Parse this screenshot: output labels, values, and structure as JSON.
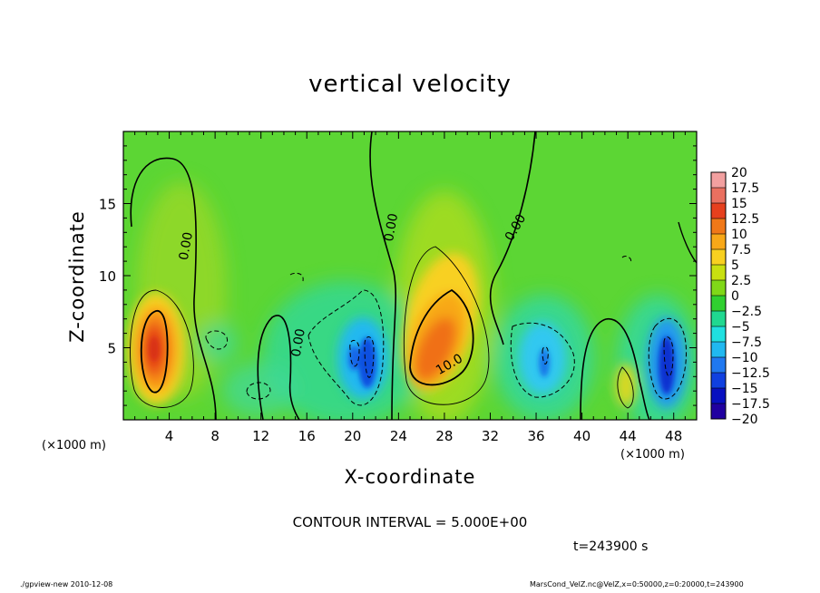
{
  "chart_data": {
    "type": "heatmap",
    "title": "vertical velocity",
    "xlabel": "X-coordinate",
    "ylabel": "Z-coordinate",
    "x_unit_left": "(×1000 m)",
    "x_unit_right": "(×1000 m)",
    "xlim": [
      0,
      50
    ],
    "ylim": [
      0,
      20
    ],
    "x_ticks": [
      4,
      8,
      12,
      16,
      20,
      24,
      28,
      32,
      36,
      40,
      44,
      48
    ],
    "y_ticks": [
      5,
      10,
      15
    ],
    "colorbar": {
      "labels": [
        "20",
        "17.5",
        "15",
        "12.5",
        "10",
        "7.5",
        "5",
        "2.5",
        "0",
        "−2.5",
        "−5",
        "−7.5",
        "−10",
        "−12.5",
        "−15",
        "−17.5",
        "−20"
      ],
      "colors": [
        "#f2a0a0",
        "#ea7060",
        "#e6401e",
        "#f07818",
        "#f8a818",
        "#f8d020",
        "#c8e010",
        "#80d818",
        "#30d030",
        "#20d890",
        "#20e0e0",
        "#20b8f0",
        "#2078f0",
        "#1040e0",
        "#0810c0",
        "#2000a0",
        "#6020a0"
      ]
    },
    "contour_labels": [
      {
        "text": "0.00",
        "x": 5.8,
        "z": 12.0,
        "angle": -80
      },
      {
        "text": "0.00",
        "x": 15.6,
        "z": 5.3,
        "angle": -80
      },
      {
        "text": "0.00",
        "x": 23.7,
        "z": 13.3,
        "angle": -80
      },
      {
        "text": "0.00",
        "x": 34.5,
        "z": 13.2,
        "angle": -60
      },
      {
        "text": "10.0",
        "x": 28.6,
        "z": 3.6,
        "angle": -30
      }
    ],
    "features": [
      {
        "type": "updraft",
        "x": 2.9,
        "z": 4.5,
        "wmax": 15
      },
      {
        "type": "downdraft",
        "x": 21.2,
        "z": 3.6,
        "wmax": -12
      },
      {
        "type": "updraft",
        "x": 28.4,
        "z": 5.0,
        "wmax": 13
      },
      {
        "type": "downdraft",
        "x": 37.0,
        "z": 4.2,
        "wmax": -8
      },
      {
        "type": "updraft",
        "x": 44.0,
        "z": 2.4,
        "wmax": 8
      },
      {
        "type": "downdraft",
        "x": 47.4,
        "z": 3.6,
        "wmax": -14
      }
    ],
    "contour_interval_text": "CONTOUR INTERVAL = 5.000E+00",
    "time_text": "t=243900 s"
  },
  "footer": {
    "left": "./gpview-new  2010-12-08",
    "right": "MarsCond_VelZ.nc@VelZ,x=0:50000,z=0:20000,t=243900"
  }
}
